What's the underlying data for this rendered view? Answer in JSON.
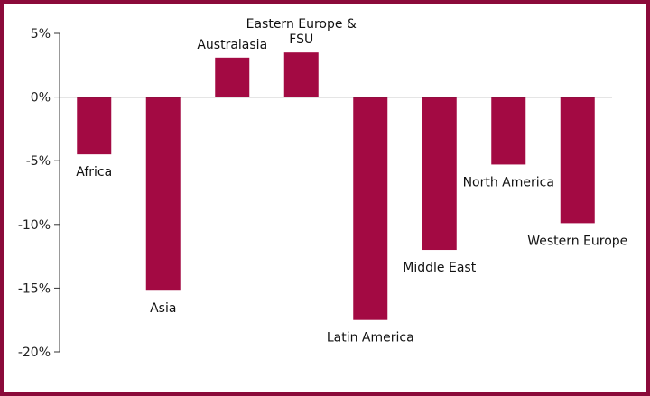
{
  "chart_data": {
    "type": "bar",
    "categories": [
      "Africa",
      "Asia",
      "Australasia",
      "Eastern Europe & FSU",
      "Latin America",
      "Middle East",
      "North America",
      "Western Europe"
    ],
    "category_label_lines": [
      [
        "Africa"
      ],
      [
        "Asia"
      ],
      [
        "Australasia"
      ],
      [
        "Eastern Europe &",
        "FSU"
      ],
      [
        "Latin America"
      ],
      [
        "Middle East"
      ],
      [
        "North America"
      ],
      [
        "Western Europe"
      ]
    ],
    "values": [
      -4.5,
      -15.2,
      3.1,
      3.5,
      -17.5,
      -12.0,
      -5.3,
      -9.9
    ],
    "value_unit": "%",
    "ylim": [
      -20,
      5
    ],
    "yticks": [
      5,
      0,
      -5,
      -10,
      -15,
      -20
    ],
    "ytick_labels": [
      "5%",
      "0%",
      "-5%",
      "-10%",
      "-15%",
      "-20%"
    ],
    "title": "",
    "xlabel": "",
    "ylabel": "",
    "grid": false,
    "legend": "none",
    "bar_color": "#a30a43",
    "frame_color": "#8b0a3a"
  }
}
